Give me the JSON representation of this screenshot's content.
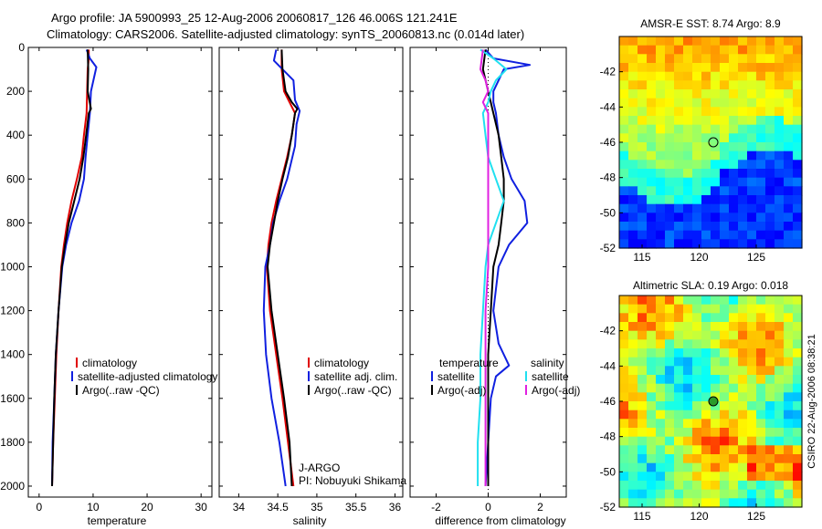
{
  "header": {
    "line1": "Argo profile: JA 5900993_25 12-Aug-2006 20060817_126 46.006S 121.241E",
    "line2": "Climatology: CARS2006. Satellite-adjusted climatology: synTS_20060813.nc (0.014d later)"
  },
  "colors": {
    "climatology": "#e00000",
    "satellite": "#1020e0",
    "argo": "#000000",
    "sat_salinity": "#20e0f0",
    "argo_salinity": "#e020e0"
  },
  "chart_data": [
    {
      "type": "line",
      "name": "temperature-panel",
      "xlabel": "temperature",
      "ylabel": "",
      "xlim": [
        -2,
        32
      ],
      "ylim": [
        2050,
        0
      ],
      "xticks": [
        0,
        10,
        20,
        30
      ],
      "yticks": [
        0,
        200,
        400,
        600,
        800,
        1000,
        1200,
        1400,
        1600,
        1800,
        2000
      ],
      "legend": [
        "climatology",
        "satellite-adjusted climatology",
        "Argo(..raw -QC)"
      ],
      "series": [
        {
          "name": "climatology",
          "color": "#e00000",
          "depth": [
            10,
            50,
            100,
            200,
            300,
            400,
            500,
            600,
            700,
            800,
            900,
            1000,
            1200,
            1400,
            1600,
            1800,
            2000
          ],
          "values": [
            9.2,
            9.2,
            9.0,
            8.9,
            8.8,
            8.3,
            7.9,
            7.0,
            6.0,
            5.2,
            4.6,
            4.1,
            3.6,
            3.2,
            2.9,
            2.6,
            2.4
          ]
        },
        {
          "name": "satellite-adjusted climatology",
          "color": "#1020e0",
          "depth": [
            10,
            50,
            90,
            200,
            300,
            400,
            500,
            600,
            700,
            800,
            900,
            1000,
            1200,
            1400,
            1600,
            1800,
            2000
          ],
          "values": [
            8.8,
            9.4,
            10.6,
            9.6,
            9.4,
            9.0,
            8.6,
            8.3,
            7.4,
            6.0,
            5.0,
            4.3,
            3.6,
            3.1,
            2.8,
            2.5,
            2.4
          ]
        },
        {
          "name": "Argo(..raw -QC)",
          "color": "#000000",
          "depth": [
            10,
            100,
            200,
            280,
            300,
            400,
            500,
            600,
            700,
            800,
            900,
            1000,
            1200,
            1400,
            1600,
            1800,
            2000
          ],
          "values": [
            9.0,
            9.1,
            9.0,
            9.6,
            9.2,
            8.7,
            8.2,
            7.5,
            6.5,
            5.5,
            4.8,
            4.2,
            3.6,
            3.1,
            2.8,
            2.6,
            2.4
          ]
        }
      ]
    },
    {
      "type": "line",
      "name": "salinity-panel",
      "xlabel": "salinity",
      "ylabel": "",
      "xlim": [
        33.75,
        36.1
      ],
      "ylim": [
        2050,
        0
      ],
      "xticks": [
        34,
        34.5,
        35,
        35.5,
        36
      ],
      "yticks": [
        0,
        200,
        400,
        600,
        800,
        1000,
        1200,
        1400,
        1600,
        1800,
        2000
      ],
      "legend": [
        "climatology",
        "satellite adj. clim.",
        "Argo(..raw -QC)"
      ],
      "annotation": [
        "J-ARGO",
        "PI: Nobuyuki Shikama"
      ],
      "series": [
        {
          "name": "climatology",
          "color": "#e00000",
          "depth": [
            10,
            100,
            200,
            300,
            400,
            500,
            600,
            700,
            800,
            900,
            1000,
            1200,
            1400,
            1600,
            1800,
            2000
          ],
          "values": [
            34.55,
            34.55,
            34.58,
            34.72,
            34.68,
            34.62,
            34.55,
            34.48,
            34.42,
            34.38,
            34.36,
            34.4,
            34.48,
            34.56,
            34.63,
            34.7
          ]
        },
        {
          "name": "satellite adj. clim.",
          "color": "#1020e0",
          "depth": [
            10,
            60,
            150,
            240,
            290,
            350,
            450,
            600,
            700,
            800,
            900,
            1000,
            1200,
            1400,
            1600,
            1800,
            2000
          ],
          "values": [
            34.48,
            34.45,
            34.7,
            34.72,
            34.78,
            34.74,
            34.72,
            34.62,
            34.52,
            34.44,
            34.4,
            34.34,
            34.32,
            34.35,
            34.42,
            34.52,
            34.6
          ]
        },
        {
          "name": "Argo(..raw -QC)",
          "color": "#000000",
          "depth": [
            10,
            100,
            200,
            250,
            280,
            300,
            400,
            500,
            600,
            700,
            800,
            900,
            1000,
            1200,
            1400,
            1600,
            1800,
            2000
          ],
          "values": [
            34.55,
            34.56,
            34.6,
            34.68,
            34.75,
            34.72,
            34.68,
            34.63,
            34.56,
            34.5,
            34.45,
            34.4,
            34.37,
            34.42,
            34.5,
            34.58,
            34.65,
            34.68
          ]
        }
      ]
    },
    {
      "type": "line",
      "name": "difference-panel",
      "xlabel": "difference from climatology",
      "ylabel": "",
      "xlim": [
        -3,
        3
      ],
      "ylim": [
        2050,
        0
      ],
      "xticks": [
        -2,
        0,
        2
      ],
      "yticks": [
        0,
        200,
        400,
        600,
        800,
        1000,
        1200,
        1400,
        1600,
        1800,
        2000
      ],
      "legend_groups": [
        {
          "title": "temperature",
          "items": [
            "satellite",
            "Argo(-adj)"
          ]
        },
        {
          "title": "salinity",
          "items": [
            "satellite",
            "Argo(-adj)"
          ]
        }
      ],
      "series": [
        {
          "name": "temperature satellite",
          "color": "#1020e0",
          "depth": [
            10,
            50,
            80,
            100,
            150,
            200,
            250,
            300,
            400,
            500,
            600,
            700,
            800,
            900,
            1000,
            1200,
            1350,
            1450,
            1500,
            1600,
            1800,
            2000
          ],
          "values": [
            -0.1,
            0.2,
            1.6,
            0.6,
            0.4,
            0.2,
            0.2,
            0.3,
            0.4,
            0.6,
            0.9,
            1.4,
            1.5,
            0.8,
            0.4,
            0.2,
            0.4,
            0.8,
            0.3,
            0.1,
            0.0,
            -0.1
          ]
        },
        {
          "name": "temperature Argo(-adj)",
          "color": "#000000",
          "depth": [
            10,
            100,
            200,
            300,
            400,
            500,
            600,
            700,
            800,
            900,
            1000,
            1200,
            1400,
            1600,
            1800,
            2000
          ],
          "values": [
            -0.1,
            -0.2,
            0.0,
            0.2,
            0.4,
            0.5,
            0.6,
            0.6,
            0.5,
            0.4,
            0.2,
            0.1,
            0.0,
            0.0,
            0.0,
            0.0
          ]
        },
        {
          "name": "salinity satellite",
          "color": "#20e0f0",
          "depth": [
            10,
            50,
            100,
            150,
            200,
            250,
            300,
            400,
            500,
            600,
            700,
            800,
            900,
            1000,
            1200,
            1400,
            1600,
            1800,
            2000
          ],
          "values": [
            -0.3,
            0.2,
            0.7,
            0.3,
            0.1,
            0.0,
            -0.2,
            -0.1,
            0.0,
            0.3,
            0.6,
            0.3,
            0.0,
            -0.1,
            -0.2,
            -0.3,
            -0.3,
            -0.4,
            -0.4
          ]
        },
        {
          "name": "salinity Argo(-adj)",
          "color": "#e020e0",
          "depth": [
            10,
            100,
            150,
            200,
            250,
            300,
            400,
            500,
            600,
            700,
            800,
            900,
            1000,
            1200,
            1400,
            1600,
            1800,
            2000
          ],
          "values": [
            -0.2,
            -0.3,
            -0.1,
            0.0,
            -0.2,
            0.0,
            0.0,
            0.0,
            0.0,
            0.0,
            0.0,
            0.0,
            0.0,
            -0.1,
            -0.1,
            -0.1,
            -0.1,
            -0.1
          ]
        }
      ]
    },
    {
      "type": "heatmap",
      "name": "sst-map",
      "title": "AMSR-E SST: 8.74 Argo: 8.9",
      "xlim": [
        113,
        129
      ],
      "ylim": [
        -52,
        -40
      ],
      "xticks": [
        115,
        120,
        125
      ],
      "yticks": [
        -42,
        -44,
        -46,
        -48,
        -50,
        -52
      ],
      "marker": {
        "lon": 121.24,
        "lat": -46.0
      }
    },
    {
      "type": "heatmap",
      "name": "sla-map",
      "title": "Altimetric SLA: 0.19 Argo: 0.018",
      "xlim": [
        113,
        129
      ],
      "ylim": [
        -52,
        -40
      ],
      "xticks": [
        115,
        120,
        125
      ],
      "yticks": [
        -42,
        -44,
        -46,
        -48,
        -50,
        -52
      ],
      "marker": {
        "lon": 121.24,
        "lat": -46.0
      },
      "side_label": "CSIRO 22-Aug-2006 08:38:21"
    }
  ]
}
